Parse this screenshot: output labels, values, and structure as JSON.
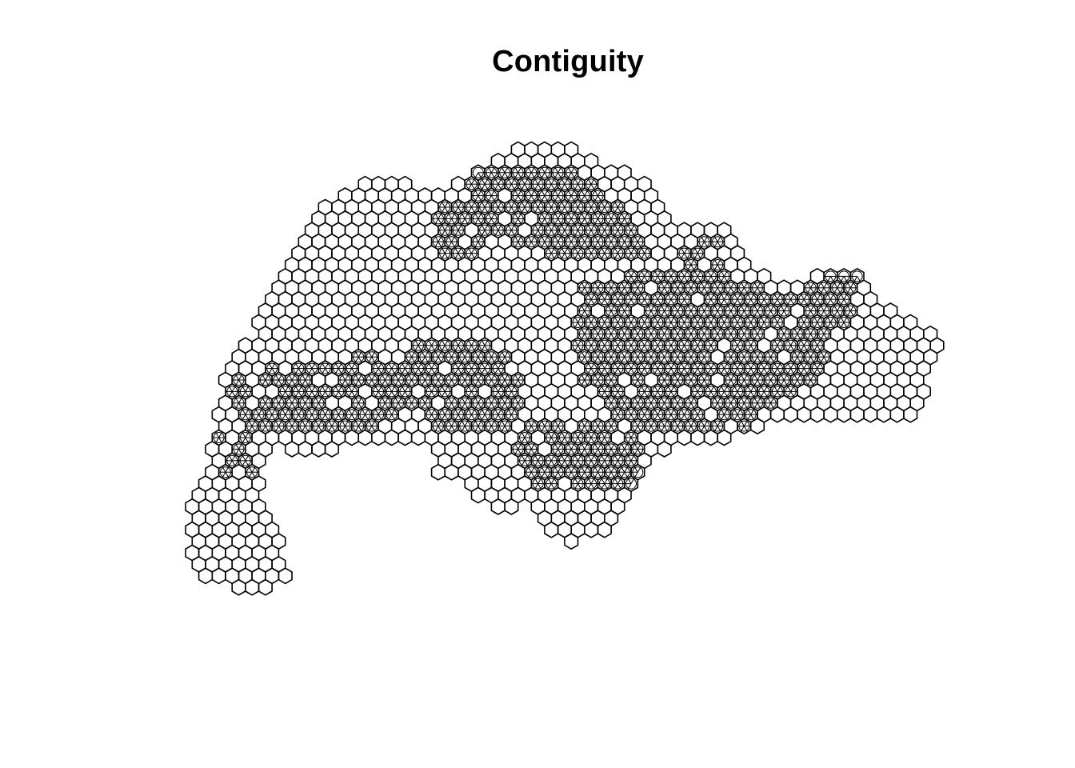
{
  "title": "Contiguity",
  "colors": {
    "background": "#ffffff",
    "stroke": "#000000"
  }
}
